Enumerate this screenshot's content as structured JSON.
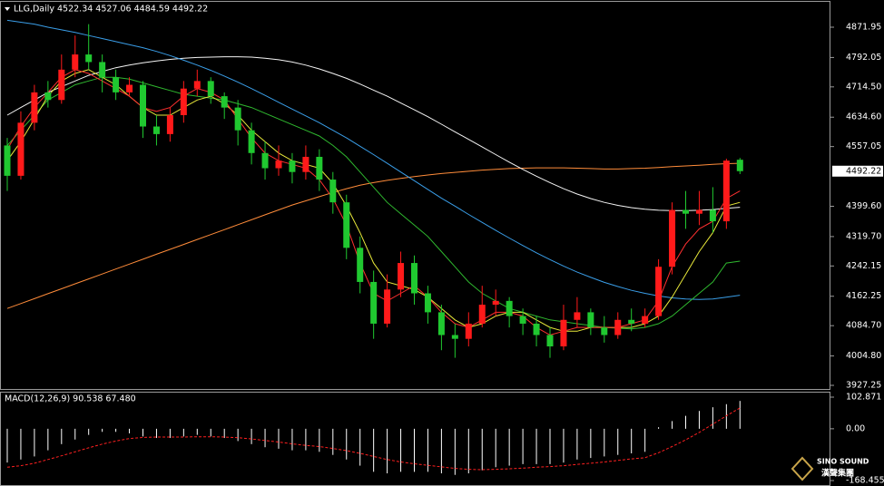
{
  "chart_data": [
    {
      "type": "candlestick",
      "title": "LLG,Daily",
      "ohlc_text": "4522.34 4527.06 4484.59 4492.22",
      "open": [
        4560,
        4480,
        4620,
        4700,
        4680,
        4760,
        4800,
        4780,
        4740,
        4700,
        4720,
        4610,
        4590,
        4640,
        4710,
        4730,
        4690,
        4660,
        4600,
        4540,
        4500,
        4520,
        4490,
        4530,
        4470,
        4410,
        4290,
        4200,
        4090,
        4180,
        4250,
        4170,
        4120,
        4060,
        4050,
        4090,
        4140,
        4150,
        4110,
        4090,
        4060,
        4030,
        4100,
        4120,
        4080,
        4060,
        4100,
        4090,
        4110,
        4240,
        4390,
        4380,
        4390,
        4360,
        4522.34
      ],
      "high": [
        4580,
        4650,
        4720,
        4730,
        4800,
        4850,
        4880,
        4800,
        4760,
        4740,
        4730,
        4640,
        4660,
        4730,
        4760,
        4740,
        4700,
        4680,
        4620,
        4570,
        4560,
        4540,
        4560,
        4550,
        4490,
        4430,
        4320,
        4230,
        4220,
        4280,
        4270,
        4190,
        4140,
        4090,
        4120,
        4190,
        4180,
        4160,
        4130,
        4110,
        4080,
        4140,
        4160,
        4130,
        4110,
        4120,
        4130,
        4130,
        4260,
        4410,
        4440,
        4440,
        4450,
        4525,
        4527.06
      ],
      "low": [
        4440,
        4470,
        4600,
        4660,
        4670,
        4740,
        4760,
        4700,
        4680,
        4690,
        4580,
        4560,
        4570,
        4620,
        4690,
        4670,
        4630,
        4560,
        4510,
        4470,
        4480,
        4460,
        4470,
        4440,
        4380,
        4260,
        4170,
        4050,
        4080,
        4160,
        4140,
        4090,
        4020,
        4000,
        4030,
        4080,
        4110,
        4080,
        4060,
        4030,
        4000,
        4020,
        4080,
        4060,
        4040,
        4050,
        4070,
        4080,
        4100,
        4220,
        4340,
        4350,
        4330,
        4340,
        4484.59
      ],
      "close": [
        4480,
        4620,
        4700,
        4680,
        4760,
        4800,
        4780,
        4740,
        4700,
        4720,
        4610,
        4590,
        4640,
        4710,
        4730,
        4690,
        4660,
        4600,
        4540,
        4500,
        4520,
        4490,
        4530,
        4470,
        4410,
        4290,
        4200,
        4090,
        4180,
        4250,
        4170,
        4120,
        4060,
        4050,
        4090,
        4140,
        4150,
        4110,
        4090,
        4060,
        4030,
        4100,
        4120,
        4080,
        4060,
        4100,
        4090,
        4110,
        4240,
        4390,
        4380,
        4390,
        4360,
        4520,
        4492.22
      ],
      "up_color": "#ff1a1a",
      "down_color": "#20c830",
      "series": [
        {
          "color": "#ff8c3a",
          "values": [
            4130,
            4143,
            4156,
            4169,
            4182,
            4195,
            4208,
            4221,
            4234,
            4247,
            4260,
            4273,
            4286,
            4299,
            4312,
            4325,
            4338,
            4351,
            4364,
            4377,
            4390,
            4403,
            4414,
            4425,
            4436,
            4446,
            4455,
            4462,
            4468,
            4473,
            4478,
            4482,
            4486,
            4489,
            4492,
            4495,
            4497,
            4499,
            4500,
            4501,
            4501,
            4501,
            4500,
            4499,
            4498,
            4498,
            4499,
            4500,
            4502,
            4504,
            4506,
            4508,
            4510,
            4512,
            4513
          ]
        },
        {
          "color": "#f4f4f4",
          "values": [
            4640,
            4660,
            4680,
            4700,
            4715,
            4730,
            4745,
            4755,
            4765,
            4772,
            4778,
            4783,
            4787,
            4790,
            4792,
            4793,
            4794,
            4794,
            4793,
            4790,
            4786,
            4780,
            4772,
            4762,
            4750,
            4737,
            4722,
            4706,
            4690,
            4672,
            4654,
            4636,
            4616,
            4596,
            4576,
            4556,
            4536,
            4516,
            4497,
            4479,
            4462,
            4446,
            4432,
            4420,
            4410,
            4402,
            4396,
            4392,
            4389,
            4388,
            4388,
            4389,
            4391,
            4394,
            4397
          ]
        },
        {
          "color": "#3a9ee8",
          "values": [
            4890,
            4885,
            4880,
            4872,
            4865,
            4858,
            4850,
            4842,
            4834,
            4826,
            4818,
            4808,
            4797,
            4785,
            4772,
            4758,
            4743,
            4727,
            4710,
            4692,
            4674,
            4656,
            4638,
            4620,
            4600,
            4580,
            4558,
            4536,
            4513,
            4490,
            4467,
            4444,
            4421,
            4400,
            4378,
            4357,
            4336,
            4316,
            4296,
            4277,
            4259,
            4242,
            4226,
            4212,
            4199,
            4188,
            4178,
            4170,
            4163,
            4158,
            4155,
            4154,
            4155,
            4160,
            4165
          ]
        },
        {
          "color": "#2fb82f",
          "values": [
            4560,
            4600,
            4640,
            4680,
            4700,
            4720,
            4730,
            4740,
            4740,
            4735,
            4725,
            4715,
            4705,
            4695,
            4690,
            4685,
            4680,
            4670,
            4660,
            4645,
            4630,
            4615,
            4600,
            4585,
            4560,
            4530,
            4490,
            4450,
            4410,
            4380,
            4350,
            4320,
            4280,
            4240,
            4200,
            4170,
            4150,
            4130,
            4120,
            4110,
            4100,
            4095,
            4090,
            4085,
            4080,
            4078,
            4076,
            4080,
            4090,
            4110,
            4140,
            4170,
            4200,
            4250,
            4255
          ]
        },
        {
          "color": "#e8e83a",
          "values": [
            4520,
            4570,
            4630,
            4690,
            4730,
            4750,
            4760,
            4740,
            4720,
            4690,
            4660,
            4640,
            4640,
            4660,
            4680,
            4690,
            4670,
            4640,
            4600,
            4570,
            4540,
            4520,
            4510,
            4500,
            4460,
            4400,
            4330,
            4250,
            4200,
            4190,
            4180,
            4160,
            4130,
            4100,
            4080,
            4090,
            4110,
            4120,
            4120,
            4100,
            4080,
            4070,
            4070,
            4080,
            4080,
            4080,
            4080,
            4090,
            4110,
            4160,
            4220,
            4280,
            4330,
            4400,
            4410
          ]
        },
        {
          "color": "#ff3030",
          "values": [
            4550,
            4610,
            4660,
            4700,
            4740,
            4760,
            4750,
            4730,
            4710,
            4690,
            4660,
            4650,
            4660,
            4690,
            4710,
            4700,
            4680,
            4630,
            4580,
            4540,
            4520,
            4510,
            4500,
            4470,
            4420,
            4350,
            4250,
            4170,
            4150,
            4170,
            4190,
            4160,
            4120,
            4090,
            4080,
            4100,
            4120,
            4120,
            4110,
            4080,
            4060,
            4070,
            4080,
            4080,
            4080,
            4080,
            4090,
            4100,
            4150,
            4240,
            4300,
            4340,
            4360,
            4420,
            4440
          ]
        }
      ],
      "ylim": [
        3915.3,
        4938.9
      ],
      "yticks": [
        {
          "value": 4871.95,
          "label": "4871.95"
        },
        {
          "value": 4792.05,
          "label": "4792.05"
        },
        {
          "value": 4714.5,
          "label": "4714.50"
        },
        {
          "value": 4634.6,
          "label": "4634.60"
        },
        {
          "value": 4557.05,
          "label": "4557.05"
        },
        {
          "value": 4399.6,
          "label": "4399.60"
        },
        {
          "value": 4319.7,
          "label": "4319.70"
        },
        {
          "value": 4242.15,
          "label": "4242.15"
        },
        {
          "value": 4162.25,
          "label": "4162.25"
        },
        {
          "value": 4084.7,
          "label": "4084.70"
        },
        {
          "value": 4004.8,
          "label": "4004.80"
        },
        {
          "value": 3927.25,
          "label": "3927.25"
        }
      ],
      "current_price": {
        "value": 4492.22,
        "label": "4492.22"
      }
    },
    {
      "type": "macd",
      "title": "MACD(12,26,9) 90.538 67.480",
      "series": [
        {
          "color": "#ffffff",
          "style": "histogram",
          "values": [
            -110,
            -100,
            -90,
            -70,
            -50,
            -35,
            -20,
            -10,
            -10,
            -15,
            -25,
            -30,
            -30,
            -25,
            -20,
            -25,
            -30,
            -40,
            -50,
            -60,
            -65,
            -70,
            -70,
            -75,
            -85,
            -100,
            -120,
            -140,
            -145,
            -140,
            -140,
            -140,
            -145,
            -150,
            -145,
            -135,
            -125,
            -120,
            -115,
            -115,
            -115,
            -110,
            -100,
            -95,
            -90,
            -85,
            -80,
            -75,
            5,
            25,
            42,
            58,
            70,
            80,
            90.538
          ]
        },
        {
          "color": "#ff2020",
          "style": "dashed",
          "values": [
            -125,
            -120,
            -112,
            -100,
            -88,
            -75,
            -62,
            -50,
            -40,
            -32,
            -28,
            -27,
            -27,
            -27,
            -26,
            -26,
            -27,
            -29,
            -33,
            -38,
            -43,
            -49,
            -54,
            -58,
            -64,
            -71,
            -80,
            -90,
            -100,
            -108,
            -114,
            -119,
            -124,
            -129,
            -132,
            -133,
            -132,
            -130,
            -128,
            -125,
            -123,
            -120,
            -116,
            -112,
            -108,
            -103,
            -98,
            -94,
            -78,
            -58,
            -36,
            -12,
            15,
            42,
            67.48
          ]
        }
      ],
      "ylim": [
        -183.2,
        117.6
      ],
      "yticks": [
        102.871,
        {
          "value": 0,
          "label": "0.00"
        },
        -168.455
      ]
    }
  ],
  "watermark": {
    "brand": "SINO SOUND",
    "name": "漢聲集團"
  }
}
